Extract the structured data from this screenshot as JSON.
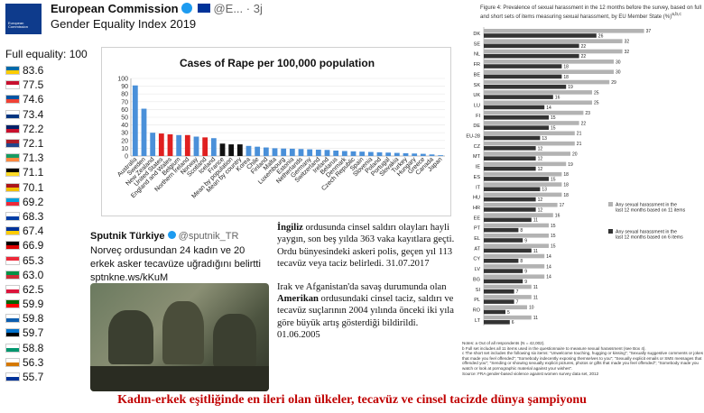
{
  "header": {
    "logo_text": "European Commission",
    "account_name": "European Commission",
    "handle": "@E...",
    "time": "3j",
    "title": "Gender Equality Index 2019"
  },
  "full_equality_label": "Full equality: 100",
  "scores": [
    {
      "value": "83.6",
      "flag": [
        "#006aa7",
        "#fecc00"
      ]
    },
    {
      "value": "77.5",
      "flag": [
        "#c8102e",
        "#ffffff"
      ]
    },
    {
      "value": "74.6",
      "flag": [
        "#0055a4",
        "#ef4135"
      ]
    },
    {
      "value": "73.4",
      "flag": [
        "#ffffff",
        "#003580"
      ]
    },
    {
      "value": "72.2",
      "flag": [
        "#012169",
        "#c8102e"
      ]
    },
    {
      "value": "72.1",
      "flag": [
        "#ae1c28",
        "#21468b"
      ]
    },
    {
      "value": "71.3",
      "flag": [
        "#169b62",
        "#ff883e"
      ]
    },
    {
      "value": "71.1",
      "flag": [
        "#000000",
        "#fdda24"
      ]
    },
    {
      "value": "70.1",
      "flag": [
        "#aa151b",
        "#f1bf00"
      ]
    },
    {
      "value": "69.2",
      "flag": [
        "#00a1de",
        "#ed2939"
      ]
    },
    {
      "value": "68.3",
      "flag": [
        "#ffffff",
        "#003da5"
      ]
    },
    {
      "value": "67.4",
      "flag": [
        "#003399",
        "#ffcc00"
      ]
    },
    {
      "value": "66.9",
      "flag": [
        "#000000",
        "#dd0000"
      ]
    },
    {
      "value": "65.3",
      "flag": [
        "#ed2939",
        "#ffffff"
      ]
    },
    {
      "value": "63.0",
      "flag": [
        "#009246",
        "#ce2b37"
      ]
    },
    {
      "value": "62.5",
      "flag": [
        "#ffffff",
        "#dc143c"
      ]
    },
    {
      "value": "59.9",
      "flag": [
        "#006600",
        "#ff0000"
      ]
    },
    {
      "value": "59.8",
      "flag": [
        "#ffffff",
        "#0d5eaf"
      ]
    },
    {
      "value": "59.7",
      "flag": [
        "#0072ce",
        "#000000"
      ]
    },
    {
      "value": "58.8",
      "flag": [
        "#ffffff",
        "#00966e"
      ]
    },
    {
      "value": "56.3",
      "flag": [
        "#ffffff",
        "#d57800"
      ]
    },
    {
      "value": "55.7",
      "flag": [
        "#ffffff",
        "#003399"
      ]
    }
  ],
  "chart_data": [
    {
      "type": "bar",
      "title": "Cases of Rape per 100,000 population",
      "ylim": [
        0,
        100
      ],
      "yticks": [
        0,
        10,
        20,
        30,
        40,
        50,
        60,
        70,
        80,
        90,
        100
      ],
      "categories": [
        "Australia",
        "Sweden",
        "New Zealand",
        "United States",
        "England and Wales",
        "Belgium",
        "Northern Ireland",
        "Norway",
        "Scotland",
        "Iceland",
        "France",
        "Mean by population",
        "Mean by country",
        "Korea",
        "Chile",
        "Finland",
        "Malta",
        "Luxembourg",
        "Estonia",
        "Netherlands",
        "Germany",
        "Switzerland",
        "Ireland",
        "Belarus",
        "Denmark",
        "Czech Republic",
        "Spain",
        "Slovenia",
        "Poland",
        "Portugal",
        "Slovakia",
        "Turkey",
        "Hungary",
        "Greece",
        "Canada",
        "Japan"
      ],
      "values": [
        91,
        61,
        30,
        29,
        28,
        27,
        27,
        25,
        24,
        23,
        16,
        15,
        15,
        13,
        12,
        11,
        10,
        9.6,
        9.4,
        9,
        8.6,
        8.2,
        7.8,
        7,
        6.4,
        6,
        5.6,
        5.2,
        4.8,
        4.4,
        4,
        3.6,
        3.2,
        2.8,
        2,
        1
      ],
      "colors_note": "blue default, red for United States/England and Wales/Northern Ireland/Scotland, black for France and means",
      "highlight": {
        "blue": "#4a90d9",
        "red": "#e02020",
        "black": "#111111"
      }
    },
    {
      "type": "bar",
      "title": "Figure 4:  Prevalence of sexual harassment in the 12 months before the survey, based on full and short sets of items measuring sexual harassment, by EU Member State (%)",
      "title_suffix": "a,b,c",
      "categories": [
        "DK",
        "SE",
        "NL",
        "FR",
        "BE",
        "SK",
        "UK",
        "LU",
        "FI",
        "DE",
        "EU-28",
        "CZ",
        "MT",
        "IE",
        "ES",
        "IT",
        "HU",
        "HR",
        "EE",
        "PT",
        "EL",
        "AT",
        "CY",
        "LV",
        "BG",
        "SI",
        "PL",
        "RO",
        "LT"
      ],
      "xlim": [
        0,
        40
      ],
      "series": [
        {
          "name": "Any sexual harassment in the last 12 months based on 11 items",
          "values": [
            37,
            32,
            32,
            30,
            30,
            29,
            25,
            25,
            23,
            22,
            21,
            21,
            20,
            19,
            18,
            18,
            18,
            17,
            16,
            15,
            15,
            15,
            14,
            14,
            14,
            11,
            11,
            10,
            11
          ]
        },
        {
          "name": "Any sexual harassment in the last 12 months based on 6 items",
          "values": [
            26,
            22,
            22,
            18,
            18,
            19,
            16,
            14,
            15,
            15,
            13,
            12,
            12,
            12,
            15,
            13,
            12,
            12,
            11,
            8,
            9,
            11,
            8,
            9,
            9,
            7,
            7,
            5,
            6
          ]
        }
      ],
      "colors": {
        "full": "#b3b3b3",
        "short": "#333333"
      }
    }
  ],
  "figure_notes": [
    "Notes:   a  Out of all respondents (N = 42,002).",
    "b  Full set includes all 11 items used in the questionnaire to measure sexual harassment (see Box 4).",
    "c  The short set includes the following six items: \"Unwelcome touching, hugging or kissing\"; \"Sexually suggestive comments or jokes that made you feel offended\"; \"Somebody indecently exposing themselves to you\"; \"Sexually explicit emails or SMS messages that offended you\"; \"Sending or showing sexually explicit pictures, photos or gifts that made you feel offended\"; \"Somebody made you watch or look at pornographic material against your wishes\".",
    "Source:  FRA gender-based violence against women survey data set, 2012"
  ],
  "tweet": {
    "name": "Sputnik Türkiye",
    "handle": "@sputnik_TR",
    "text": "Norveç ordusundan 24 kadın ve 20 erkek asker tecavüze uğradığını belirtti sptnkne.ws/kKuM"
  },
  "tr_text": {
    "p1_bold": "İngiliz",
    "p1": " ordusunda cinsel saldırı olayları hayli yaygın, son beş yılda 363 vaka kayıtlara geçti. Ordu bünyesindeki askeri polis, geçen yıl 113 tecavüz veya taciz belirledi. 31.07.2017",
    "p2a": "Irak ve Afganistan'da savaş durumunda olan ",
    "p2_bold": "Amerikan",
    "p2b": " ordusundaki cinsel taciz, saldırı ve tecavüz suçlarının 2004 yılında önceki iki yıla göre büyük artış gösterdiği bildirildi. 01.06.2005"
  },
  "caption": "Kadın-erkek eşitliğinde en ileri olan ülkeler, tecavüz ve cinsel tacizde dünya şampiyonu"
}
